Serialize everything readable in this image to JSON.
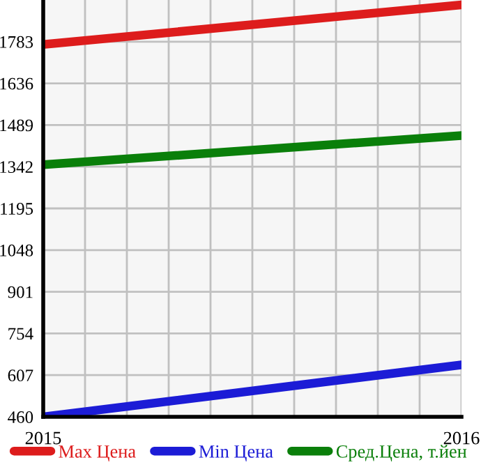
{
  "chart_data": {
    "type": "line",
    "x": [
      2015,
      2016
    ],
    "series": [
      {
        "name": "Max Цена",
        "color": "#dd1c1c",
        "values": [
          1773,
          1913
        ]
      },
      {
        "name": "Min Цена",
        "color": "#1c1cd6",
        "values": [
          460,
          643
        ]
      },
      {
        "name": "Сред.Цена, т.йен",
        "color": "#0a7f0a",
        "values": [
          1349,
          1452
        ]
      }
    ],
    "xlim": [
      2015,
      2016
    ],
    "xticks": [
      2015,
      {
        "value": 2015.1,
        "label": null
      },
      {
        "value": 2015.2,
        "label": null
      },
      {
        "value": 2015.3,
        "label": null
      },
      {
        "value": 2015.4,
        "label": null
      },
      {
        "value": 2015.5,
        "label": null
      },
      {
        "value": 2015.6,
        "label": null
      },
      {
        "value": 2015.7,
        "label": null
      },
      {
        "value": 2015.8,
        "label": null
      },
      {
        "value": 2015.9,
        "label": null
      },
      2016
    ],
    "ylim": [
      460,
      1930
    ],
    "yticks": [
      460,
      607,
      754,
      901,
      1048,
      1195,
      1342,
      1489,
      1636,
      1783
    ],
    "grid": true,
    "legend": "bottom",
    "marker": "none",
    "line_style": "solid"
  }
}
